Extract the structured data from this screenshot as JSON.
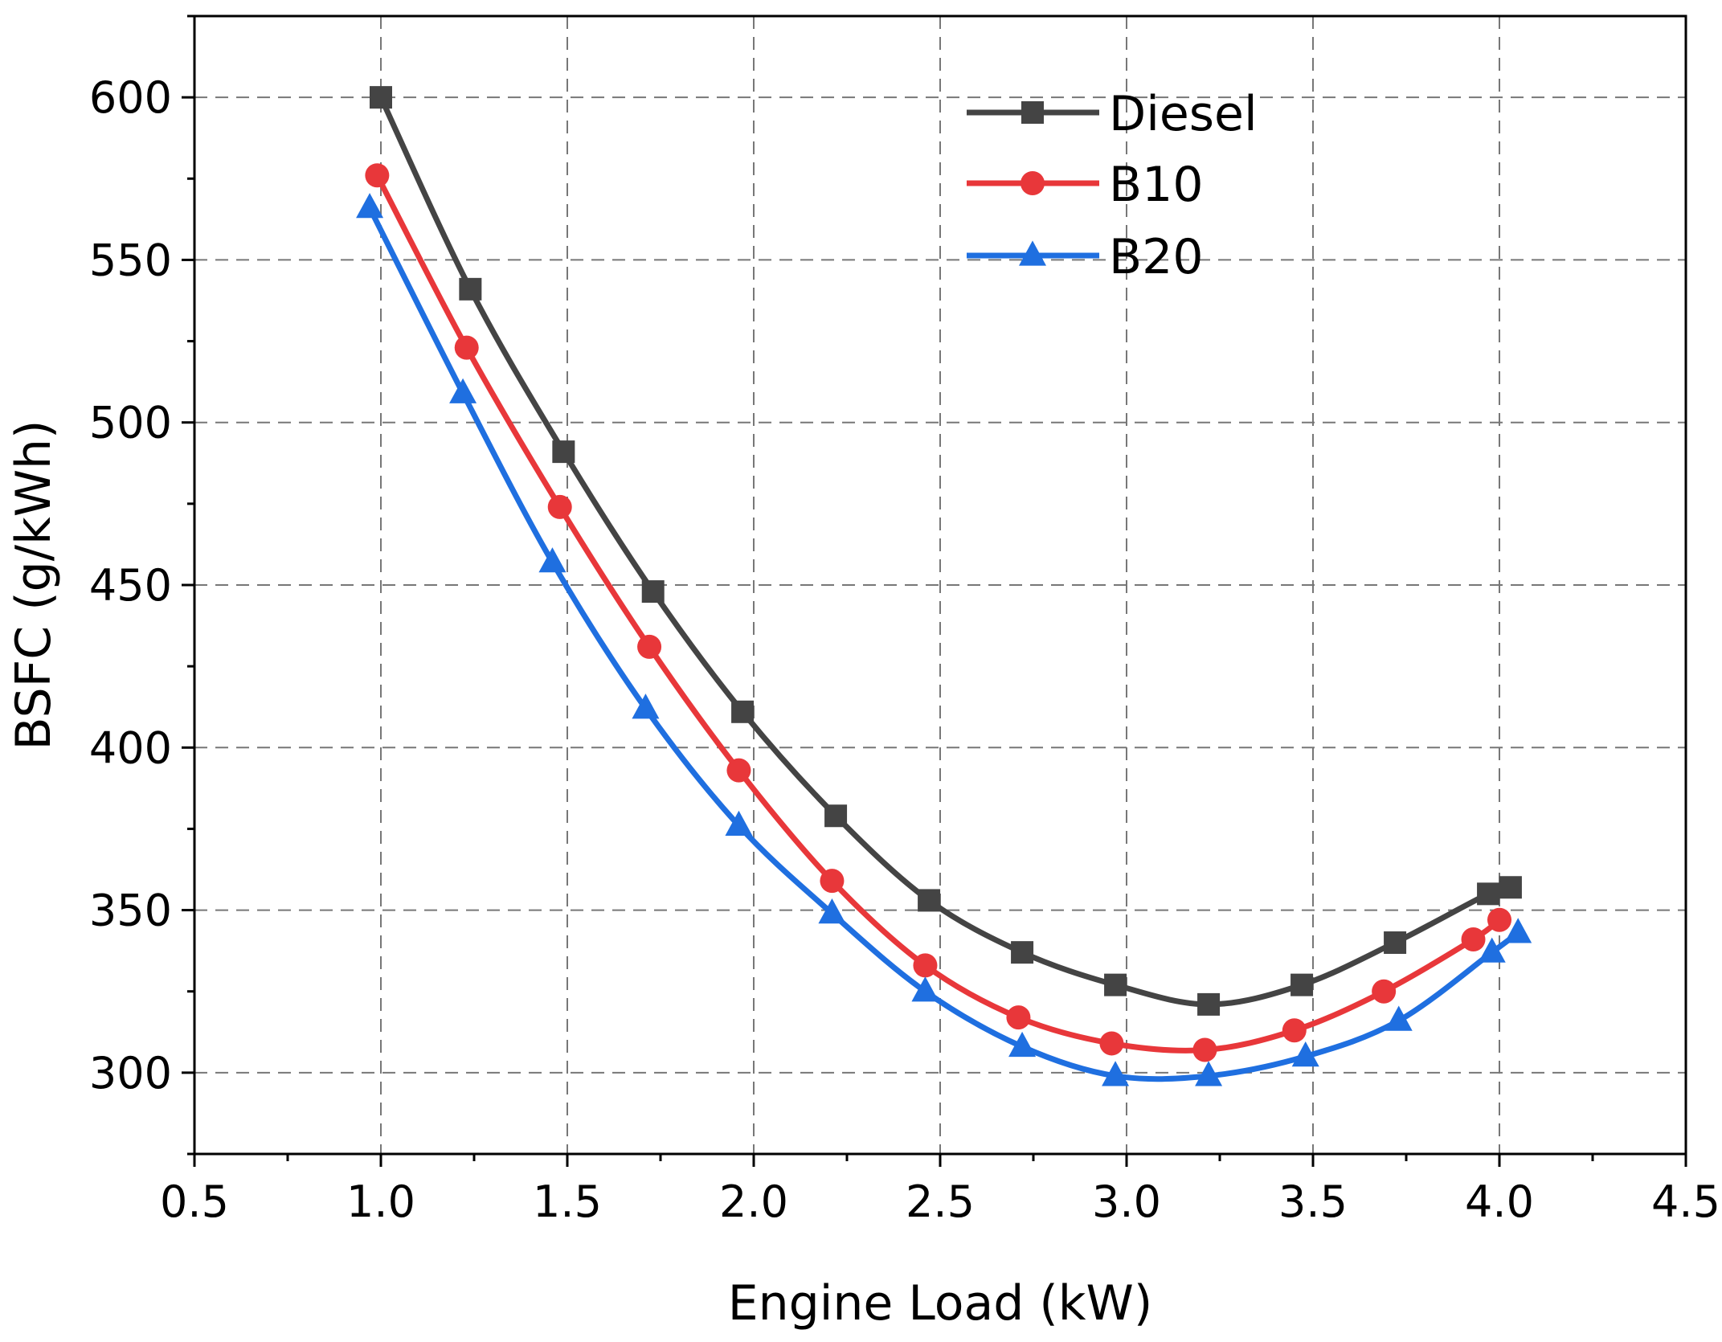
{
  "chart_data": {
    "type": "line",
    "title": "",
    "xlabel": "Engine Load (kW)",
    "ylabel": "BSFC (g/kWh)",
    "xlim": [
      0.5,
      4.5
    ],
    "ylim": [
      275,
      625
    ],
    "xticks": [
      "0.5",
      "1.0",
      "1.5",
      "2.0",
      "2.5",
      "3.0",
      "3.5",
      "4.0",
      "4.5"
    ],
    "xtick_values": [
      0.5,
      1.0,
      1.5,
      2.0,
      2.5,
      3.0,
      3.5,
      4.0,
      4.5
    ],
    "yticks": [
      "300",
      "350",
      "400",
      "450",
      "500",
      "550",
      "600"
    ],
    "ytick_values": [
      300,
      350,
      400,
      450,
      500,
      550,
      600
    ],
    "grid": true,
    "legend_position": "top-center",
    "series": [
      {
        "name": "Diesel",
        "color": "#444444",
        "marker": "square",
        "x": [
          1.0,
          1.24,
          1.49,
          1.73,
          1.97,
          2.22,
          2.47,
          2.72,
          2.97,
          3.22,
          3.47,
          3.72,
          3.97,
          4.03
        ],
        "y": [
          600,
          541,
          491,
          448,
          411,
          379,
          353,
          337,
          327,
          321,
          327,
          340,
          355,
          357
        ]
      },
      {
        "name": "B10",
        "color": "#e8373a",
        "marker": "circle",
        "x": [
          0.99,
          1.23,
          1.48,
          1.72,
          1.96,
          2.21,
          2.46,
          2.71,
          2.96,
          3.21,
          3.45,
          3.69,
          3.93,
          4.0
        ],
        "y": [
          576,
          523,
          474,
          431,
          393,
          359,
          333,
          317,
          309,
          307,
          313,
          325,
          341,
          347
        ]
      },
      {
        "name": "B20",
        "color": "#1f6fe0",
        "marker": "triangle",
        "x": [
          0.97,
          1.22,
          1.46,
          1.71,
          1.96,
          2.21,
          2.46,
          2.72,
          2.97,
          3.22,
          3.48,
          3.73,
          3.98,
          4.05
        ],
        "y": [
          566,
          509,
          457,
          412,
          376,
          349,
          325,
          308,
          299,
          299,
          305,
          316,
          337,
          343
        ]
      }
    ]
  }
}
